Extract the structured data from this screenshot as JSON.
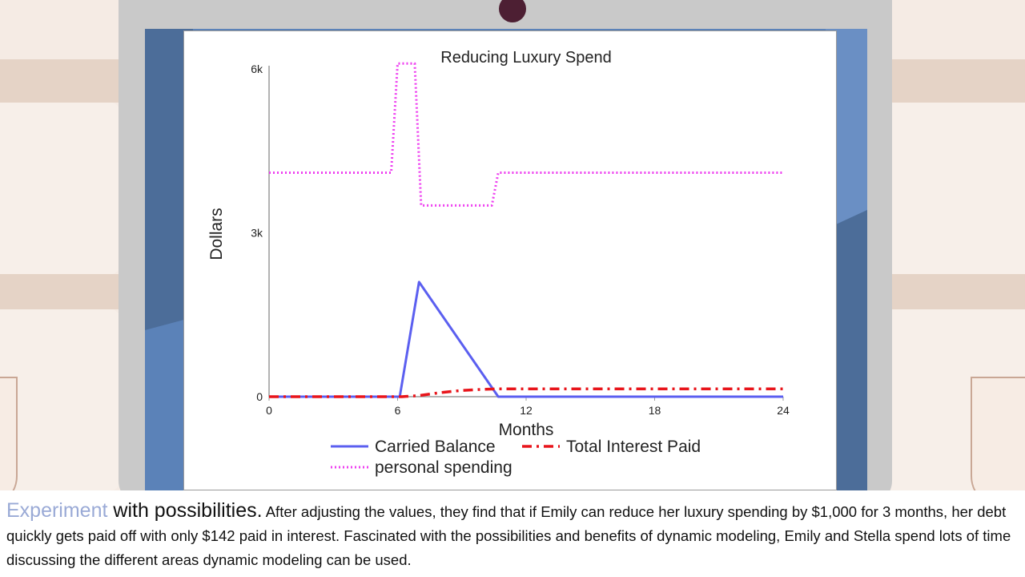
{
  "colors": {
    "carried_balance": "#5b5ff0",
    "total_interest": "#e8151b",
    "personal_spending": "#ee3ff0",
    "caption_accent": "#9aaad6"
  },
  "chart_data": {
    "type": "line",
    "title": "Reducing Luxury Spend",
    "xlabel": "Months",
    "ylabel": "Dollars",
    "xlim": [
      0,
      24
    ],
    "ylim": [
      0,
      6000
    ],
    "x_ticks": [
      0,
      6,
      12,
      18,
      24
    ],
    "y_ticks": [
      0,
      3000,
      6000
    ],
    "x_tick_labels": [
      "0",
      "6",
      "12",
      "18",
      "24"
    ],
    "y_tick_labels": [
      "0",
      "3k",
      "6k"
    ],
    "grid": false,
    "legend_position": "bottom",
    "series": [
      {
        "name": "Carried Balance",
        "style": "solid",
        "color": "#5b5ff0",
        "points": [
          [
            0,
            0
          ],
          [
            6.1,
            0
          ],
          [
            7,
            2100
          ],
          [
            10.7,
            0
          ],
          [
            24,
            0
          ]
        ]
      },
      {
        "name": "Total Interest Paid",
        "style": "dashdot",
        "color": "#e8151b",
        "points": [
          [
            0,
            0
          ],
          [
            6.2,
            0
          ],
          [
            7,
            20
          ],
          [
            8,
            75
          ],
          [
            9,
            115
          ],
          [
            10,
            135
          ],
          [
            10.7,
            142
          ],
          [
            24,
            142
          ]
        ]
      },
      {
        "name": "personal spending",
        "style": "dotted",
        "color": "#ee3ff0",
        "points": [
          [
            0,
            4100
          ],
          [
            5.7,
            4100
          ],
          [
            6,
            6100
          ],
          [
            6.8,
            6100
          ],
          [
            7.1,
            3500
          ],
          [
            10.4,
            3500
          ],
          [
            10.7,
            4100
          ],
          [
            24,
            4100
          ]
        ]
      }
    ]
  },
  "caption": {
    "accent": "Experiment",
    "lead": " with possibilities.",
    "body": " After adjusting the values, they find that if Emily can reduce her luxury spending by $1,000 for 3 months, her debt quickly gets paid off with only $142 paid in interest. Fascinated with the possibilities and benefits of dynamic modeling, Emily and Stella spend lots of time discussing the different areas dynamic modeling can be used."
  }
}
